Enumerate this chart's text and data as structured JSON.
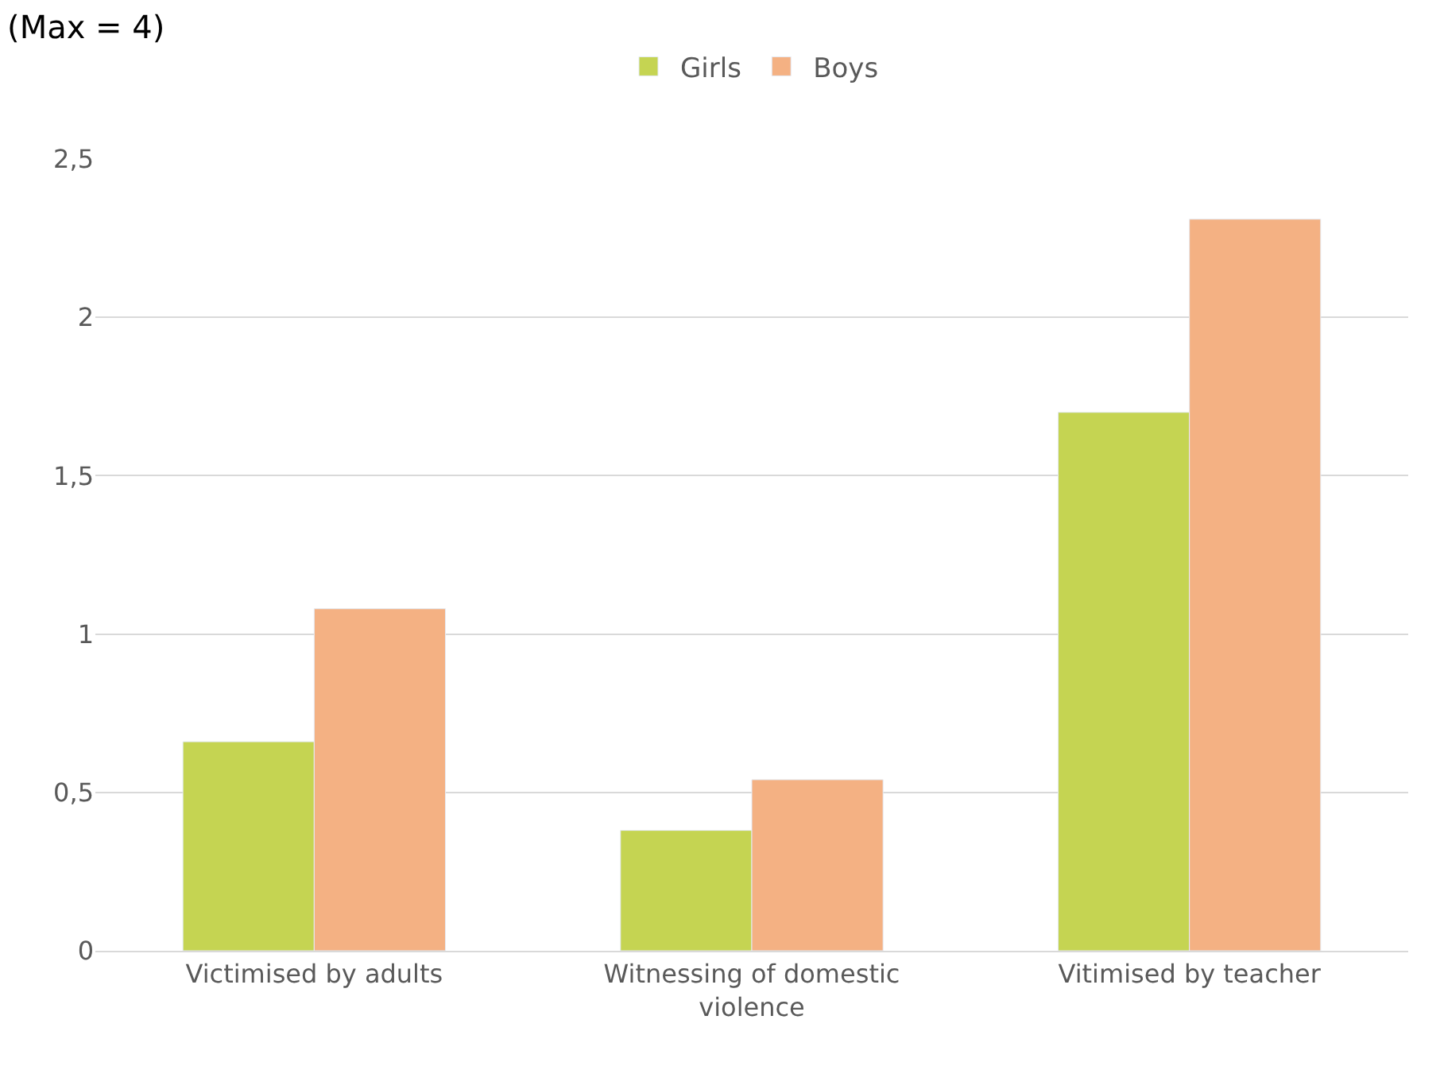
{
  "chart_data": {
    "type": "bar",
    "title": "(Max = 4)",
    "categories": [
      "Victimised by adults",
      "Witnessing of domestic violence",
      "Vitimised by teacher"
    ],
    "series": [
      {
        "name": "Girls",
        "color": "#c5d452",
        "values": [
          0.66,
          0.38,
          1.7
        ]
      },
      {
        "name": "Boys",
        "color": "#f4b183",
        "values": [
          1.08,
          0.54,
          2.31
        ]
      }
    ],
    "ylim": [
      0,
      2.5
    ],
    "yticks": [
      0,
      {
        "value": 0.5,
        "label": "0,5"
      },
      1,
      {
        "value": 1.5,
        "label": "1,5"
      },
      2,
      {
        "value": 2.5,
        "label": "2,5"
      }
    ],
    "grid": "y",
    "legend": "top"
  }
}
